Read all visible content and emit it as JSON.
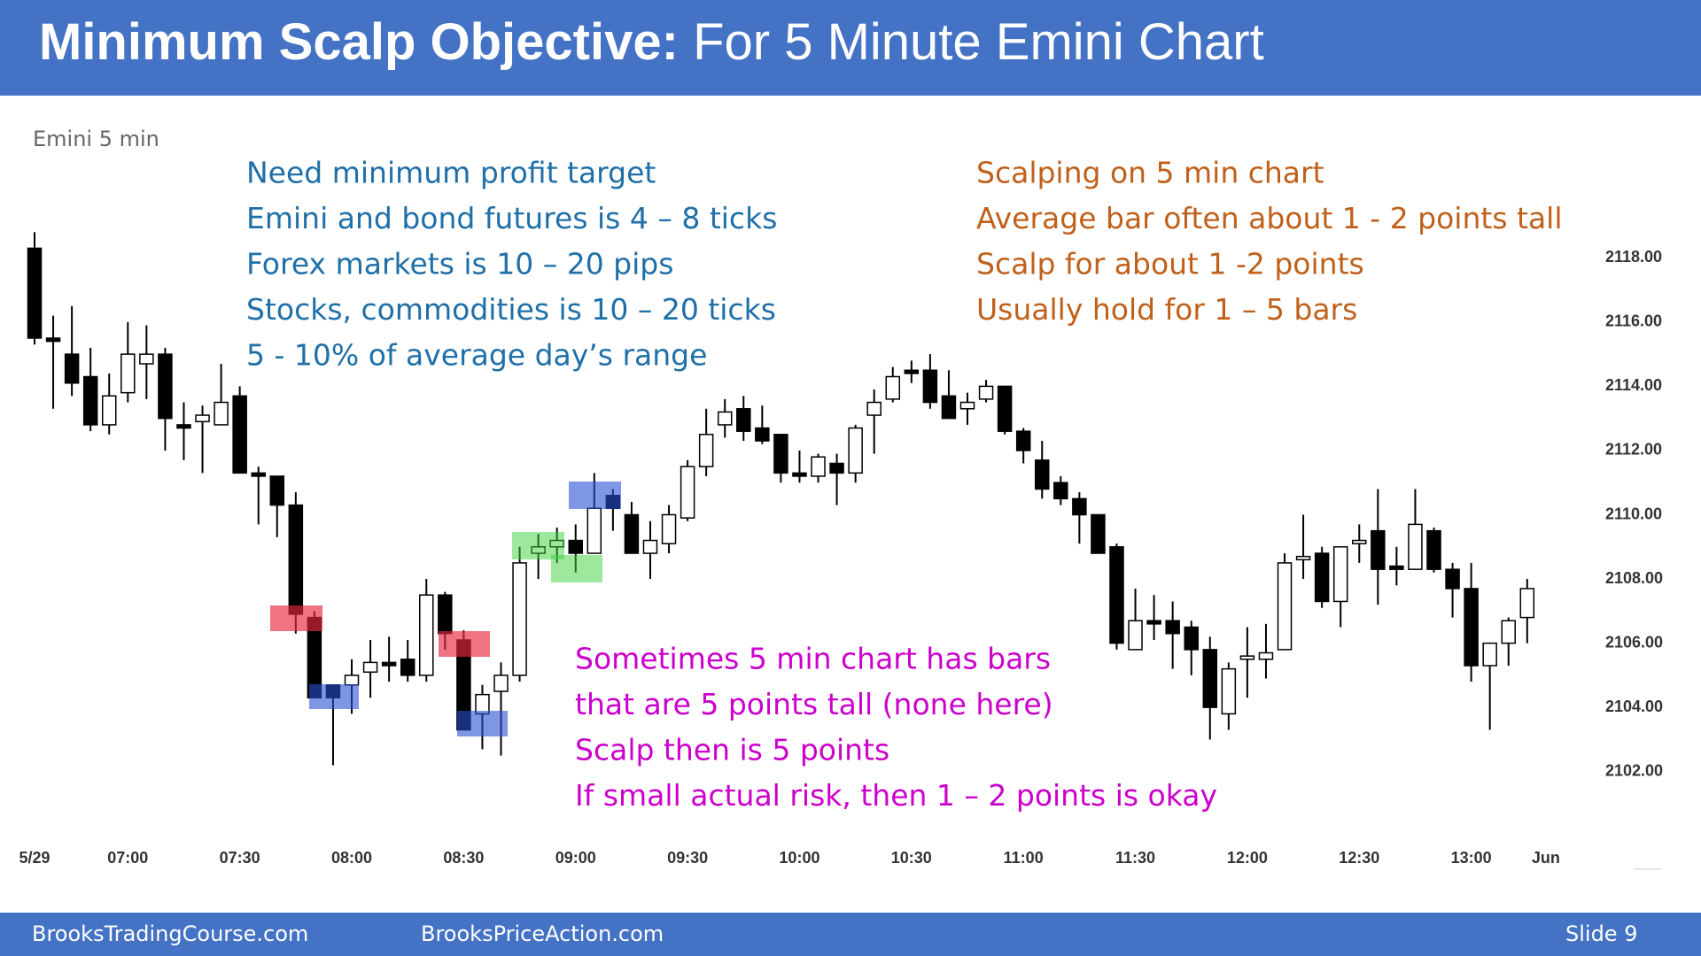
{
  "header": {
    "title_bold": "Minimum Scalp Objective:",
    "title_rest": "For 5 Minute Emini Chart"
  },
  "chart_data": {
    "type": "candlestick",
    "label": "Emini 5 min",
    "categories": [
      "5/29",
      null,
      null,
      null,
      null,
      "07:00",
      null,
      null,
      null,
      null,
      null,
      "07:30",
      null,
      null,
      null,
      null,
      null,
      "08:00",
      null,
      null,
      null,
      null,
      null,
      "08:30",
      null,
      null,
      null,
      null,
      null,
      "09:00",
      null,
      null,
      null,
      null,
      null,
      "09:30",
      null,
      null,
      null,
      null,
      null,
      "10:00",
      null,
      null,
      null,
      null,
      null,
      "10:30",
      null,
      null,
      null,
      null,
      null,
      "11:00",
      null,
      null,
      null,
      null,
      null,
      "11:30",
      null,
      null,
      null,
      null,
      null,
      "12:00",
      null,
      null,
      null,
      null,
      null,
      "12:30",
      null,
      null,
      null,
      null,
      null,
      "13:00",
      null,
      null,
      null,
      "Jun"
    ],
    "open": [
      2118.3,
      2115.5,
      2115.0,
      2114.3,
      2112.8,
      2113.8,
      2114.7,
      2115.0,
      2112.8,
      2112.9,
      2112.8,
      2113.7,
      2111.3,
      2111.2,
      2110.3,
      2106.8,
      2104.7,
      2104.7,
      2105.1,
      2105.4,
      2105.5,
      2105.0,
      2107.5,
      2106.1,
      2103.8,
      2104.5,
      2105.0,
      2108.8,
      2109.0,
      2109.2,
      2108.8,
      2110.6,
      2110.0,
      2108.8,
      2109.1,
      2109.9,
      2111.5,
      2112.8,
      2113.3,
      2112.7,
      2112.5,
      2111.3,
      2111.2,
      2111.6,
      2111.3,
      2113.1,
      2113.6,
      2114.5,
      2114.5,
      2113.7,
      2113.3,
      2113.6,
      2114.0,
      2112.6,
      2111.7,
      2111.0,
      2110.5,
      2110.0,
      2109.0,
      2105.8,
      2106.7,
      2106.7,
      2106.5,
      2105.8,
      2103.8,
      2105.5,
      2105.5,
      2105.8,
      2108.6,
      2108.8,
      2107.3,
      2109.1,
      2109.5,
      2108.4,
      2108.3,
      2109.5,
      2108.3,
      2107.7,
      2105.3,
      2106.0,
      2106.8,
      null
    ],
    "high": [
      2118.8,
      2116.2,
      2116.5,
      2115.2,
      2114.4,
      2116.0,
      2115.9,
      2115.2,
      2113.5,
      2113.4,
      2114.7,
      2114.0,
      2111.5,
      2111.2,
      2110.7,
      2107.0,
      2104.7,
      2105.5,
      2106.1,
      2106.2,
      2106.1,
      2108.0,
      2107.6,
      2106.4,
      2104.7,
      2105.4,
      2109.0,
      2109.4,
      2109.6,
      2109.7,
      2111.3,
      2110.8,
      2110.4,
      2109.8,
      2110.3,
      2111.7,
      2113.3,
      2113.6,
      2113.7,
      2113.4,
      2112.5,
      2112.0,
      2111.9,
      2111.9,
      2112.8,
      2113.9,
      2114.6,
      2114.8,
      2115.0,
      2114.5,
      2113.8,
      2114.2,
      2114.0,
      2112.7,
      2112.3,
      2111.2,
      2110.7,
      2110.0,
      2109.1,
      2107.7,
      2107.5,
      2107.3,
      2106.7,
      2106.2,
      2105.4,
      2106.5,
      2106.6,
      2108.8,
      2110.0,
      2109.0,
      2109.0,
      2109.7,
      2110.8,
      2109.0,
      2110.8,
      2109.6,
      2108.5,
      2108.5,
      2106.0,
      2106.8,
      2108.0,
      null
    ],
    "low": [
      2115.3,
      2113.3,
      2113.7,
      2112.6,
      2112.5,
      2113.5,
      2113.6,
      2112.0,
      2111.7,
      2111.3,
      2112.8,
      2111.3,
      2109.7,
      2109.3,
      2106.3,
      2104.3,
      2102.2,
      2103.8,
      2104.3,
      2104.8,
      2104.8,
      2104.8,
      2105.8,
      2103.3,
      2102.7,
      2102.5,
      2104.8,
      2108.0,
      2108.5,
      2108.2,
      2108.8,
      2109.5,
      2108.8,
      2108.0,
      2108.8,
      2109.8,
      2111.2,
      2112.4,
      2112.3,
      2112.2,
      2111.0,
      2111.0,
      2111.0,
      2110.3,
      2111.0,
      2111.9,
      2113.5,
      2114.1,
      2113.3,
      2113.0,
      2112.8,
      2113.5,
      2112.5,
      2111.6,
      2110.5,
      2110.3,
      2109.1,
      2108.8,
      2105.8,
      2105.8,
      2106.1,
      2105.2,
      2105.0,
      2103.0,
      2103.3,
      2104.3,
      2104.9,
      2105.8,
      2108.0,
      2107.1,
      2106.5,
      2108.5,
      2107.2,
      2107.8,
      2108.3,
      2108.2,
      2106.8,
      2104.8,
      2103.3,
      2105.3,
      2106.0,
      null
    ],
    "close": [
      2115.5,
      2115.4,
      2114.1,
      2112.8,
      2113.7,
      2115.0,
      2115.0,
      2113.0,
      2112.7,
      2113.1,
      2113.5,
      2111.3,
      2111.2,
      2110.3,
      2106.9,
      2104.3,
      2104.3,
      2105.0,
      2105.4,
      2105.3,
      2105.0,
      2107.5,
      2106.3,
      2103.3,
      2104.4,
      2105.0,
      2108.5,
      2109.0,
      2109.2,
      2108.8,
      2110.2,
      2110.2,
      2108.8,
      2109.2,
      2110.0,
      2111.5,
      2112.5,
      2113.2,
      2112.6,
      2112.3,
      2111.3,
      2111.2,
      2111.8,
      2111.3,
      2112.7,
      2113.5,
      2114.3,
      2114.4,
      2113.5,
      2113.0,
      2113.5,
      2114.0,
      2112.6,
      2112.0,
      2110.8,
      2110.5,
      2110.0,
      2108.8,
      2106.0,
      2106.7,
      2106.6,
      2106.3,
      2105.8,
      2104.0,
      2105.2,
      2105.6,
      2105.7,
      2108.5,
      2108.7,
      2107.3,
      2109.0,
      2109.2,
      2108.3,
      2108.3,
      2109.7,
      2108.3,
      2107.7,
      2105.3,
      2106.0,
      2106.7,
      2107.7,
      null
    ],
    "up_color": "#ffffff",
    "down_color": "#000000",
    "ylim": [
      2101,
      2119
    ],
    "yticks": [
      {
        "value": 2102,
        "label": "2102.00"
      },
      {
        "value": 2104,
        "label": "2104.00"
      },
      {
        "value": 2106,
        "label": "2106.00"
      },
      {
        "value": 2108,
        "label": "2108.00"
      },
      {
        "value": 2110,
        "label": "2110.00"
      },
      {
        "value": 2112,
        "label": "2112.00"
      },
      {
        "value": 2114,
        "label": "2114.00"
      },
      {
        "value": 2116,
        "label": "2116.00"
      },
      {
        "value": 2118,
        "label": "2118.00"
      }
    ],
    "annotations": [
      {
        "color": "#1f6fa8",
        "lines": [
          "Need minimum profit target",
          "Emini and bond futures is 4 – 8 ticks",
          "Forex markets is 10 – 20 pips",
          "Stocks, commodities is 10 – 20 ticks",
          "5 - 10% of average day’s range"
        ]
      },
      {
        "color": "#c0601a",
        "lines": [
          "Scalping on 5 min chart",
          "Average bar often about 1 - 2 points tall",
          "Scalp for about 1 -2  points",
          "Usually hold for 1 – 5 bars"
        ]
      },
      {
        "color": "#cc00cc",
        "lines": [
          "Sometimes 5 min chart has bars",
          "that are 5 points tall (none here)",
          "Scalp then is 5 points",
          "If small actual risk, then 1 – 2 points is okay"
        ]
      }
    ]
  },
  "footer": {
    "left": "BrooksTradingCourse.com",
    "center": "BrooksPriceAction.com",
    "slide": "Slide 9"
  }
}
